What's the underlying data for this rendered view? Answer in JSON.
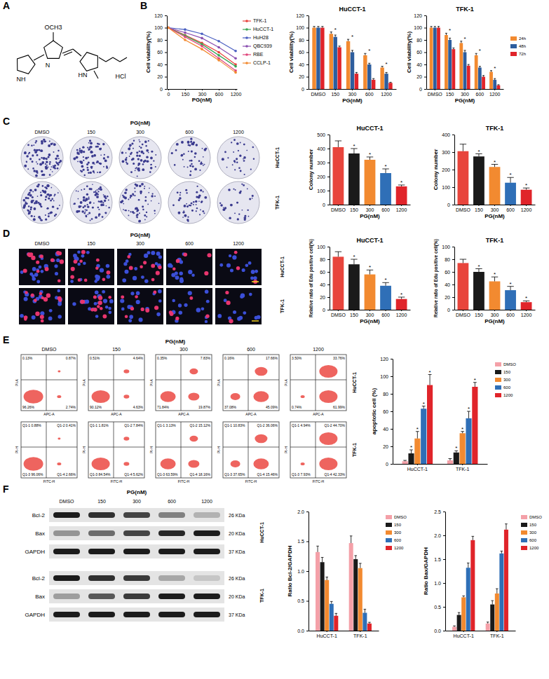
{
  "panel_labels": [
    "A",
    "B",
    "C",
    "D",
    "E",
    "F"
  ],
  "structure": {
    "labels": [
      "OCH3",
      "NH",
      "N",
      "HN",
      "HCl"
    ]
  },
  "colony_images": {
    "title": "PG(nM)",
    "columns": [
      "DMSO",
      "150",
      "300",
      "600",
      "1200"
    ],
    "rows": [
      "HuCCT-1",
      "TFK-1"
    ]
  },
  "edu_images": {
    "title": "PG(nM)",
    "columns": [
      "DMSO",
      "150",
      "300",
      "600",
      "1200"
    ],
    "rows": [
      "HuCCT-1",
      "TFK-1"
    ]
  },
  "flow_cytometry": {
    "title": "PG(nM)",
    "columns": [
      "DMSO",
      "150",
      "300",
      "600",
      "1200"
    ],
    "rows": [
      {
        "cell_line": "HuCCT-1",
        "x_label": "APC-A",
        "y_label": "PI-A",
        "quadrants": [
          [
            "0.13%",
            "0.87%",
            "96.26%",
            "2.74%"
          ],
          [
            "0.51%",
            "4.64%",
            "90.12%",
            "4.63%"
          ],
          [
            "0.35%",
            "7.83%",
            "71.84%",
            "19.87%"
          ],
          [
            "0.16%",
            "17.66%",
            "37.08%",
            "45.09%"
          ],
          [
            "3.50%",
            "33.76%",
            "0.74%",
            "61.99%"
          ]
        ]
      },
      {
        "cell_line": "TFK-1",
        "x_label": "FITC-H",
        "y_label": "PI-H",
        "quadrants": [
          [
            "Q1-1 0.88%",
            "Q1-2 0.41%",
            "Q1-3 96.06%",
            "Q1-4 2.66%"
          ],
          [
            "Q1-1 1.81%",
            "Q1-2 7.84%",
            "Q1-3 84.54%",
            "Q1-4 5.62%"
          ],
          [
            "Q1-1 3.13%",
            "Q1-2 15.12%",
            "Q1-3 63.59%",
            "Q1-4 18.16%"
          ],
          [
            "Q1-1 10.83%",
            "Q1-2 36.06%",
            "Q1-3 37.65%",
            "Q1-4 15.46%"
          ],
          [
            "Q1-1 4.94%",
            "Q1-2 44.70%",
            "Q1-3 7.93%",
            "Q1-4 42.33%"
          ]
        ]
      }
    ]
  },
  "western_blot": {
    "title": "PG(nM)",
    "columns": [
      "DMSO",
      "150",
      "300",
      "600",
      "1200"
    ],
    "groups": [
      {
        "cell_line": "HuCCT-1",
        "bands": [
          {
            "protein": "Bcl-2",
            "size": "26 KDa"
          },
          {
            "protein": "Bax",
            "size": "20 KDa"
          },
          {
            "protein": "GAPDH",
            "size": "37 KDa"
          }
        ]
      },
      {
        "cell_line": "TFK-1",
        "bands": [
          {
            "protein": "Bcl-2",
            "size": "26 KDa"
          },
          {
            "protein": "Bax",
            "size": "20 KDa"
          },
          {
            "protein": "GAPDH",
            "size": "37 KDa"
          }
        ]
      }
    ]
  },
  "chart_data": [
    {
      "type": "line",
      "x_label": "PG(nM)",
      "y_label": "Cell viability(%)",
      "categories": [
        "0",
        "150",
        "300",
        "600",
        "1200"
      ],
      "ylim": [
        0,
        120
      ],
      "yticks": [
        0,
        20,
        40,
        60,
        80,
        100,
        120
      ],
      "marker": "circle",
      "legend": "right",
      "series": [
        {
          "name": "TFK-1",
          "color": "#e8413c",
          "values": [
            100,
            88,
            75,
            60,
            40
          ]
        },
        {
          "name": "HuCCT-1",
          "color": "#3aa655",
          "values": [
            100,
            87,
            73,
            55,
            37
          ]
        },
        {
          "name": "HuH28",
          "color": "#4a5fc1",
          "values": [
            100,
            97,
            90,
            78,
            62
          ]
        },
        {
          "name": "QBC939",
          "color": "#8a4fb0",
          "values": [
            100,
            92,
            83,
            68,
            50
          ]
        },
        {
          "name": "RBE",
          "color": "#e0457b",
          "values": [
            100,
            85,
            70,
            50,
            30
          ]
        },
        {
          "name": "CCLP-1",
          "color": "#f28a30",
          "values": [
            100,
            80,
            65,
            47,
            27
          ]
        }
      ]
    },
    {
      "type": "bar",
      "title": "HuCCT-1",
      "x_label": "PG(nM)",
      "y_label": "Cell viability(%)",
      "categories": [
        "DMSO",
        "150",
        "300",
        "600",
        "1200"
      ],
      "ylim": [
        0,
        120
      ],
      "yticks": [
        0,
        20,
        40,
        60,
        80,
        100,
        120
      ],
      "significance": [
        null,
        "*",
        "*",
        "*",
        "*"
      ],
      "series": [
        {
          "color": "#f28a30",
          "values": [
            100,
            90,
            78,
            55,
            35
          ],
          "errors": [
            2,
            3,
            3,
            3,
            2
          ]
        },
        {
          "color": "#2e5e9e",
          "values": [
            100,
            85,
            60,
            40,
            25
          ],
          "errors": [
            2,
            3,
            3,
            2,
            2
          ]
        },
        {
          "color": "#e0242a",
          "values": [
            100,
            68,
            25,
            15,
            10
          ],
          "errors": [
            2,
            2,
            2,
            2,
            1
          ]
        }
      ]
    },
    {
      "type": "bar",
      "title": "TFK-1",
      "x_label": "PG(nM)",
      "y_label": "Cell viability(%)",
      "categories": [
        "DMSO",
        "150",
        "300",
        "600",
        "1200"
      ],
      "ylim": [
        0,
        120
      ],
      "yticks": [
        0,
        20,
        40,
        60,
        80,
        100,
        120
      ],
      "legend": "right",
      "significance": [
        null,
        "*",
        "*",
        "*",
        "*"
      ],
      "series": [
        {
          "name": "24h",
          "color": "#f28a30",
          "values": [
            100,
            88,
            75,
            55,
            28
          ],
          "errors": [
            2,
            3,
            3,
            3,
            2
          ]
        },
        {
          "name": "48h",
          "color": "#2e5e9e",
          "values": [
            100,
            80,
            60,
            35,
            15
          ],
          "errors": [
            2,
            3,
            3,
            2,
            2
          ]
        },
        {
          "name": "72h",
          "color": "#e0242a",
          "values": [
            100,
            65,
            38,
            20,
            6
          ],
          "errors": [
            2,
            2,
            2,
            2,
            1
          ]
        }
      ]
    },
    {
      "type": "bar",
      "title": "HuCCT-1",
      "x_label": "PG(nM)",
      "y_label": "Colony number",
      "categories": [
        "DMSO",
        "150",
        "300",
        "600",
        "1200"
      ],
      "values": [
        410,
        365,
        320,
        225,
        130
      ],
      "errors": [
        45,
        35,
        20,
        30,
        10
      ],
      "colors": [
        "#e8453c",
        "#1a1a1a",
        "#f28a30",
        "#2f6fb7",
        "#e0242a"
      ],
      "ylim": [
        0,
        500
      ],
      "yticks": [
        0,
        100,
        200,
        300,
        400,
        500
      ],
      "significance": [
        null,
        "*",
        "*",
        "*",
        "*"
      ]
    },
    {
      "type": "bar",
      "title": "TFK-1",
      "x_label": "PG(nM)",
      "y_label": "Colony number",
      "categories": [
        "DMSO",
        "150",
        "300",
        "600",
        "1200"
      ],
      "values": [
        305,
        275,
        215,
        125,
        85
      ],
      "errors": [
        40,
        15,
        15,
        30,
        10
      ],
      "colors": [
        "#e8453c",
        "#1a1a1a",
        "#f28a30",
        "#2f6fb7",
        "#e0242a"
      ],
      "ylim": [
        0,
        400
      ],
      "yticks": [
        0,
        100,
        200,
        300,
        400
      ],
      "significance": [
        null,
        "*",
        "*",
        "*",
        "*"
      ]
    },
    {
      "type": "bar",
      "title": "HuCCT-1",
      "x_label": "PG(nM)",
      "y_label": "Relative ratio of Edu positive cell(%)",
      "categories": [
        "DMSO",
        "150",
        "300",
        "600",
        "1200"
      ],
      "values": [
        84,
        72,
        56,
        38,
        17
      ],
      "errors": [
        8,
        8,
        7,
        5,
        3
      ],
      "colors": [
        "#e8453c",
        "#1a1a1a",
        "#f28a30",
        "#2f6fb7",
        "#e0242a"
      ],
      "ylim": [
        0,
        100
      ],
      "yticks": [
        0,
        20,
        40,
        60,
        80,
        100
      ],
      "significance": [
        null,
        "*",
        "*",
        "*",
        "*"
      ]
    },
    {
      "type": "bar",
      "title": "TFK-1",
      "x_label": "PG(nM)",
      "y_label": "Relative ratio of Edu positive cell(%)",
      "categories": [
        "DMSO",
        "150",
        "300",
        "600",
        "1200"
      ],
      "values": [
        74,
        60,
        45,
        31,
        12
      ],
      "errors": [
        6,
        5,
        7,
        6,
        2
      ],
      "colors": [
        "#e8453c",
        "#1a1a1a",
        "#f28a30",
        "#2f6fb7",
        "#e0242a"
      ],
      "ylim": [
        0,
        100
      ],
      "yticks": [
        0,
        20,
        40,
        60,
        80,
        100
      ],
      "significance": [
        null,
        "*",
        "*",
        "*",
        "*"
      ]
    },
    {
      "type": "bar",
      "y_label": "apoptotic cell (%)",
      "categories": [
        "HuCCT-1",
        "TFK-1"
      ],
      "ylim": [
        0,
        120
      ],
      "yticks": [
        0,
        20,
        40,
        60,
        80,
        100,
        120
      ],
      "legend": "upper right",
      "series": [
        {
          "name": "DMSO",
          "color": "#f4a0a8",
          "values": [
            3,
            4
          ],
          "errors": [
            1,
            2
          ]
        },
        {
          "name": "150",
          "color": "#1a1a1a",
          "values": [
            12,
            13
          ],
          "errors": [
            4,
            2
          ],
          "significance": [
            "*",
            "*"
          ]
        },
        {
          "name": "300",
          "color": "#f28a30",
          "values": [
            29,
            35
          ],
          "errors": [
            8,
            2
          ],
          "significance": [
            "*",
            "*"
          ]
        },
        {
          "name": "600",
          "color": "#2f6fb7",
          "values": [
            63,
            52
          ],
          "errors": [
            3,
            8
          ],
          "significance": [
            "*",
            "*"
          ]
        },
        {
          "name": "1200",
          "color": "#e0242a",
          "values": [
            90,
            88
          ],
          "errors": [
            12,
            5
          ],
          "significance": [
            "*",
            "*"
          ]
        }
      ]
    },
    {
      "type": "bar",
      "y_label": "Ratio Bcl-2/GAPDH",
      "categories": [
        "HuCCT-1",
        "TFK-1"
      ],
      "ylim": [
        0,
        2
      ],
      "yticks": [
        {
          "value": 0,
          "label": "0.0"
        },
        0.5,
        {
          "value": 1,
          "label": "1.0"
        },
        1.5,
        {
          "value": 2,
          "label": "2.0"
        }
      ],
      "legend": "upper right",
      "series": [
        {
          "name": "DMSO",
          "color": "#f4a0a8",
          "values": [
            1.32,
            1.47
          ],
          "errors": [
            0.1,
            0.12
          ]
        },
        {
          "name": "150",
          "color": "#1a1a1a",
          "values": [
            1.15,
            1.2
          ],
          "errors": [
            0.08,
            0.06
          ]
        },
        {
          "name": "300",
          "color": "#f28a30",
          "values": [
            0.85,
            1.05
          ],
          "errors": [
            0.05,
            0.08
          ]
        },
        {
          "name": "600",
          "color": "#2f6fb7",
          "values": [
            0.45,
            0.3
          ],
          "errors": [
            0.04,
            0.06
          ]
        },
        {
          "name": "1200",
          "color": "#e0242a",
          "values": [
            0.25,
            0.12
          ],
          "errors": [
            0.04,
            0.02
          ]
        }
      ]
    },
    {
      "type": "bar",
      "y_label": "Ratio Bax/GAPDH",
      "categories": [
        "HuCCT-1",
        "TFK-1"
      ],
      "ylim": [
        0,
        2.5
      ],
      "yticks": [
        {
          "value": 0,
          "label": "0.0"
        },
        0.5,
        {
          "value": 1,
          "label": "1.0"
        },
        1.5,
        {
          "value": 2,
          "label": "2.0"
        },
        2.5
      ],
      "legend": "upper right",
      "series": [
        {
          "name": "DMSO",
          "color": "#f4a0a8",
          "values": [
            0.08,
            0.15
          ],
          "errors": [
            0.02,
            0.03
          ]
        },
        {
          "name": "150",
          "color": "#1a1a1a",
          "values": [
            0.33,
            0.55
          ],
          "errors": [
            0.05,
            0.08
          ]
        },
        {
          "name": "300",
          "color": "#f28a30",
          "values": [
            0.7,
            0.78
          ],
          "errors": [
            0.03,
            0.1
          ]
        },
        {
          "name": "600",
          "color": "#2f6fb7",
          "values": [
            1.32,
            1.62
          ],
          "errors": [
            0.1,
            0.05
          ]
        },
        {
          "name": "1200",
          "color": "#e0242a",
          "values": [
            1.9,
            2.12
          ],
          "errors": [
            0.08,
            0.12
          ]
        }
      ]
    }
  ]
}
